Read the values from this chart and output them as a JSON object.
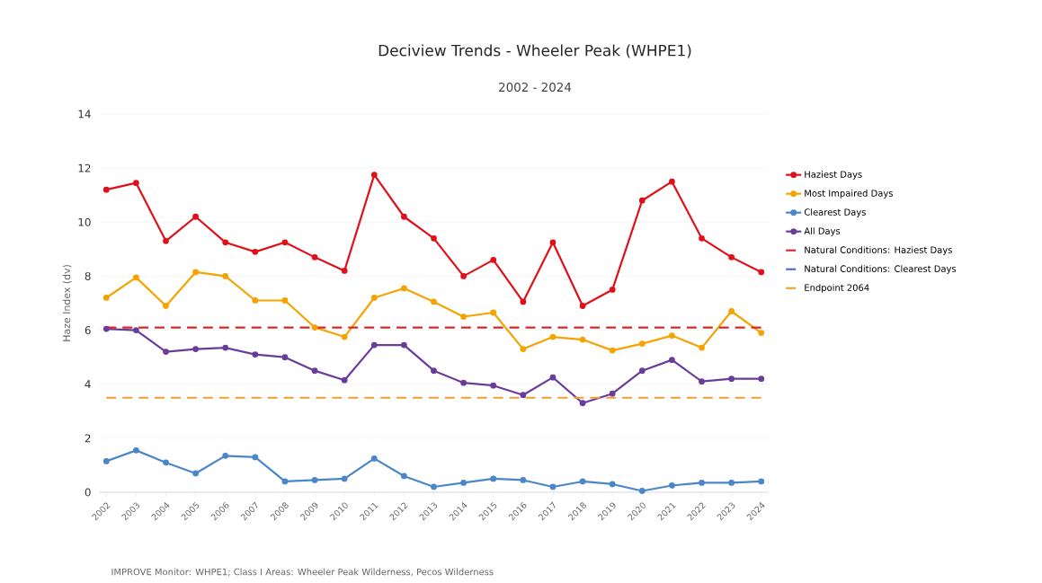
{
  "chart_data": {
    "type": "line",
    "title": "Deciview Trends - Wheeler Peak (WHPE1)",
    "subtitle": "2002 - 2024",
    "ylabel": "Haze Index (dv)",
    "categories": [
      "2002",
      "2003",
      "2004",
      "2005",
      "2006",
      "2007",
      "2008",
      "2009",
      "2010",
      "2011",
      "2012",
      "2013",
      "2014",
      "2015",
      "2016",
      "2017",
      "2018",
      "2019",
      "2020",
      "2021",
      "2022",
      "2023",
      "2024"
    ],
    "series": [
      {
        "name": "Haziest Days",
        "color": "#e0101a",
        "values": [
          11.2,
          11.45,
          9.3,
          10.2,
          9.25,
          8.9,
          9.25,
          8.7,
          8.2,
          11.75,
          10.2,
          9.4,
          8.0,
          8.6,
          7.05,
          9.25,
          6.9,
          7.5,
          10.8,
          11.5,
          9.4,
          8.7,
          8.15
        ]
      },
      {
        "name": "Most Impaired Days",
        "color": "#f5a300",
        "values": [
          7.2,
          7.95,
          6.9,
          8.15,
          8.0,
          7.1,
          7.1,
          6.1,
          5.75,
          7.2,
          7.55,
          7.05,
          6.5,
          6.65,
          5.3,
          5.75,
          5.65,
          5.25,
          5.5,
          5.8,
          5.35,
          6.7,
          5.9
        ]
      },
      {
        "name": "Clearest Days",
        "color": "#4a86c8",
        "values": [
          1.15,
          1.55,
          1.1,
          0.7,
          1.35,
          1.3,
          0.4,
          0.45,
          0.5,
          1.25,
          0.6,
          0.2,
          0.35,
          0.5,
          0.45,
          0.2,
          0.4,
          0.3,
          0.05,
          0.25,
          0.35,
          0.35,
          0.4
        ]
      },
      {
        "name": "All Days",
        "color": "#6a3d9a",
        "values": [
          6.05,
          6.0,
          5.2,
          5.3,
          5.35,
          5.1,
          5.0,
          4.5,
          4.15,
          5.45,
          5.45,
          4.5,
          4.05,
          3.95,
          3.6,
          4.25,
          3.3,
          3.65,
          4.5,
          4.9,
          4.1,
          4.2,
          4.2
        ]
      },
      {
        "name": "Natural Conditions: Haziest Days",
        "color": "#d42a2a",
        "marker": "none",
        "line_style": "dashed",
        "values": [
          6.1,
          6.1,
          6.1,
          6.1,
          6.1,
          6.1,
          6.1,
          6.1,
          6.1,
          6.1,
          6.1,
          6.1,
          6.1,
          6.1,
          6.1,
          6.1,
          6.1,
          6.1,
          6.1,
          6.1,
          6.1,
          6.1,
          6.1
        ]
      },
      {
        "name": "Natural Conditions: Clearest Days",
        "color": "#4a6fd0",
        "marker": "none",
        "line_style": "dashed",
        "values": [
          null,
          null,
          null,
          null,
          null,
          null,
          null,
          null,
          null,
          null,
          null,
          null,
          null,
          null,
          null,
          null,
          null,
          null,
          null,
          null,
          null,
          null,
          null
        ]
      },
      {
        "name": "Endpoint 2064",
        "color": "#f0a030",
        "marker": "none",
        "line_style": "dashed",
        "values": [
          3.5,
          3.5,
          3.5,
          3.5,
          3.5,
          3.5,
          3.5,
          3.5,
          3.5,
          3.5,
          3.5,
          3.5,
          3.5,
          3.5,
          3.5,
          3.5,
          3.5,
          3.5,
          3.5,
          3.5,
          3.5,
          3.5,
          3.5
        ]
      }
    ],
    "ylim": [
      0,
      14
    ],
    "yticks": [
      0,
      2,
      4,
      6,
      8,
      10,
      12,
      14
    ],
    "grid": "y",
    "legend": "right",
    "marker": "circle",
    "line_style": "solid",
    "annotations": [
      "IMPROVE Monitor: WHPE1; Class I Areas: Wheeler Peak Wilderness, Pecos Wilderness"
    ]
  }
}
